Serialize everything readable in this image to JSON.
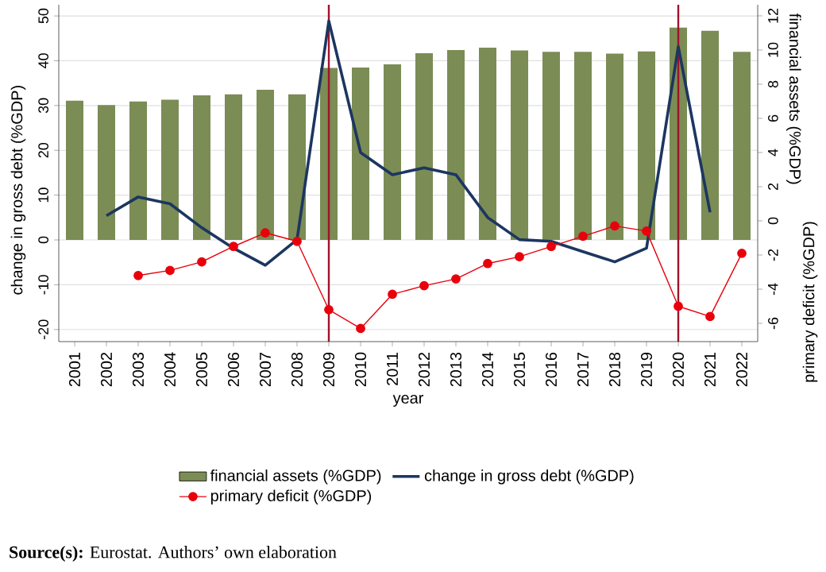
{
  "chart_data": {
    "type": "bar",
    "xlabel": "year",
    "ylabel": "change in gross debt (%GDP)",
    "y2label": "financial assets (%GDP)",
    "x": [
      2001,
      2002,
      2003,
      2004,
      2005,
      2006,
      2007,
      2008,
      2009,
      2010,
      2011,
      2012,
      2013,
      2014,
      2015,
      2016,
      2017,
      2018,
      2019,
      2020,
      2021,
      2022
    ],
    "xlim": [
      2000.5,
      2022.5
    ],
    "xticks": [
      2001,
      2002,
      2003,
      2004,
      2005,
      2006,
      2007,
      2008,
      2009,
      2010,
      2011,
      2012,
      2013,
      2014,
      2015,
      2016,
      2017,
      2018,
      2019,
      2020,
      2021,
      2022
    ],
    "ylim": [
      -22.7,
      52.5
    ],
    "yticks": [
      -20,
      -10,
      0,
      10,
      20,
      30,
      40,
      50
    ],
    "y2lim": [
      -7.07,
      12.65
    ],
    "y2ticks": [
      -6,
      -4,
      -2,
      0,
      2,
      4,
      6,
      8,
      10,
      12
    ],
    "series": [
      {
        "name": "financial assets (%GDP)",
        "color": "#7b8c55",
        "values": [
          31.1,
          30.1,
          30.9,
          31.3,
          32.3,
          32.5,
          33.5,
          32.5,
          38.4,
          38.5,
          39.2,
          41.7,
          42.4,
          42.9,
          42.3,
          42.0,
          42.0,
          41.6,
          42.1,
          47.4,
          46.7,
          42.0
        ]
      },
      {
        "name": "change in gross debt (%GDP)",
        "type": "line",
        "axis": "y2",
        "color": "#1c3660",
        "marker": "none",
        "values": [
          null,
          0.3,
          1.4,
          1.0,
          -0.4,
          -1.6,
          -2.6,
          -1.1,
          11.7,
          4.0,
          2.7,
          3.1,
          2.7,
          0.2,
          -1.1,
          -1.2,
          -1.8,
          -2.4,
          -1.6,
          10.2,
          0.5,
          null
        ]
      },
      {
        "name": "primary deficit (%GDP)",
        "type": "line",
        "axis": "y2",
        "color": "#e8000b",
        "marker": "circle",
        "values": [
          null,
          null,
          -3.2,
          -2.9,
          -2.4,
          -1.5,
          -0.7,
          -1.2,
          -5.2,
          -6.3,
          -4.3,
          -3.8,
          -3.4,
          -2.5,
          -2.1,
          -1.5,
          -0.9,
          -0.3,
          -0.6,
          -5.0,
          -5.6,
          -1.9
        ]
      }
    ],
    "ref_lines": [
      {
        "axis": "x",
        "value": 2009,
        "color": "#a0122a"
      },
      {
        "axis": "x",
        "value": 2020,
        "color": "#a0122a"
      }
    ],
    "grid": "y",
    "legend": "bottom",
    "annotations": [
      "primary deficit (%GDP)",
      "**Source(s):** Eurostat. Authors’ own elaboration"
    ]
  }
}
